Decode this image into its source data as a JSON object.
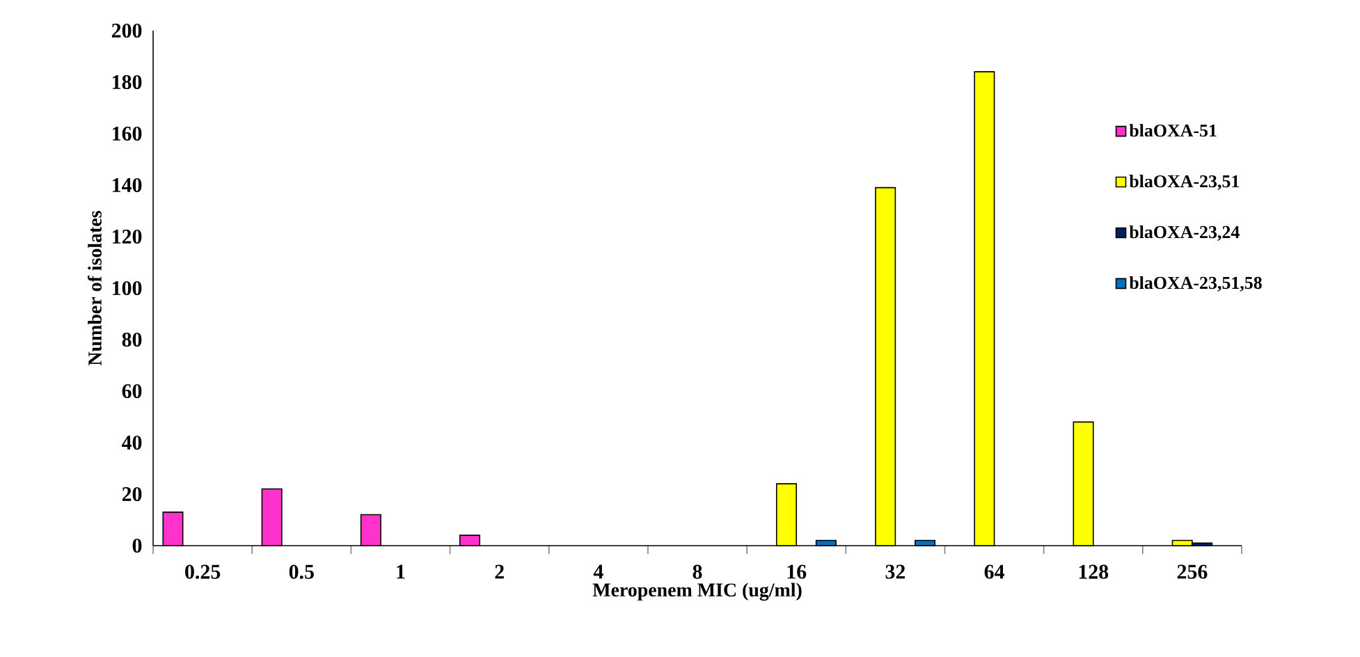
{
  "chart_data": {
    "type": "bar",
    "xlabel": "Meropenem MIC (ug/ml)",
    "ylabel": "Number of isolates",
    "categories": [
      "0.25",
      "0.5",
      "1",
      "2",
      "4",
      "8",
      "16",
      "32",
      "64",
      "128",
      "256"
    ],
    "series": [
      {
        "name": "blaOXA-51",
        "color": "#ff33cc",
        "values": [
          13,
          22,
          12,
          4,
          null,
          null,
          null,
          null,
          null,
          null,
          null
        ]
      },
      {
        "name": "blaOXA-23,51",
        "color": "#ffff00",
        "values": [
          null,
          null,
          null,
          null,
          null,
          null,
          24,
          139,
          184,
          48,
          2
        ]
      },
      {
        "name": "blaOXA-23,24",
        "color": "#002060",
        "values": [
          null,
          null,
          null,
          null,
          null,
          null,
          null,
          null,
          null,
          null,
          1
        ]
      },
      {
        "name": "blaOXA-23,51,58",
        "color": "#0070c0",
        "values": [
          null,
          null,
          null,
          null,
          null,
          null,
          2,
          2,
          null,
          null,
          null
        ]
      }
    ],
    "ylim": [
      0,
      200
    ],
    "yticks": [
      0,
      20,
      40,
      60,
      80,
      100,
      120,
      140,
      160,
      180,
      200
    ],
    "legend": "right"
  }
}
